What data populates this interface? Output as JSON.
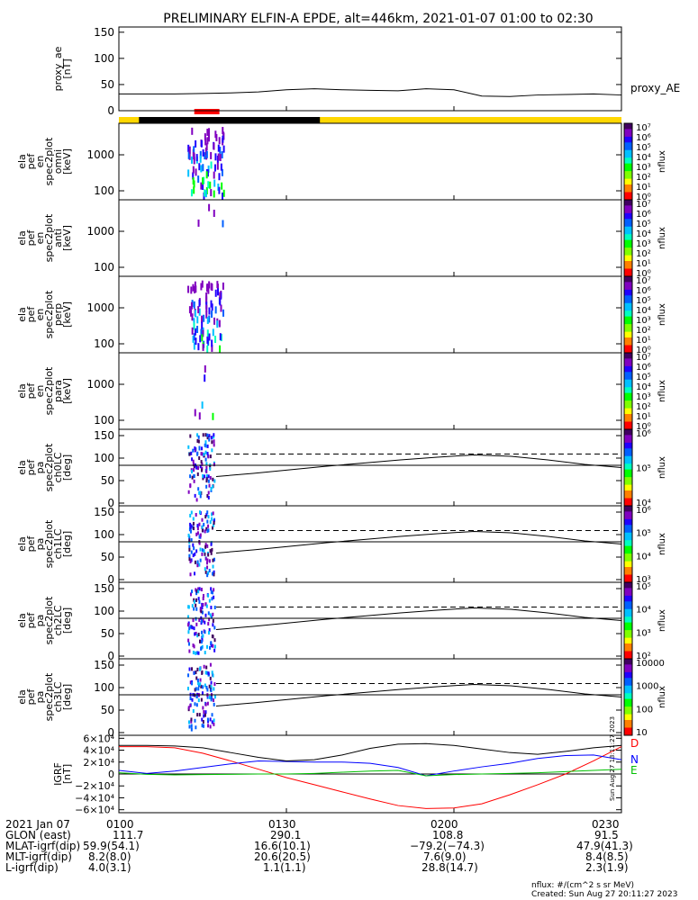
{
  "title": "PRELIMINARY ELFIN-A EPDE, alt=446km, 2021-01-07 01:00 to 02:30",
  "colors": {
    "axis": "#000000",
    "sci_bar": "#ff0000",
    "yellow_bar": "#ffd700",
    "black_bar": "#000000",
    "D": "#ff0000",
    "N": "#0000ff",
    "E": "#00c000"
  },
  "time_labels": [
    "0100",
    "0130",
    "0200",
    "0230"
  ],
  "state_bar": {
    "sci_zone": [
      0.15,
      0.2
    ],
    "black_zone": [
      0.04,
      0.4
    ]
  },
  "chart_data": [
    {
      "id": "proxy_ae",
      "type": "line",
      "ylabel": [
        "proxy_ae",
        "[nT]"
      ],
      "yticks": [
        "0",
        "50",
        "100",
        "150"
      ],
      "ylim": [
        0,
        160
      ],
      "legend": "proxy_AE",
      "x": [
        0,
        5,
        10,
        15,
        20,
        25,
        30,
        35,
        40,
        45,
        50,
        55,
        60,
        65,
        70,
        75,
        80,
        85,
        90
      ],
      "values": [
        32,
        32,
        32,
        33,
        34,
        36,
        40,
        42,
        40,
        39,
        38,
        42,
        40,
        28,
        27,
        30,
        31,
        32,
        30
      ]
    },
    {
      "id": "spec_omni",
      "type": "heatmap",
      "ylabel": [
        "ela",
        "pef",
        "en",
        "spec2plot",
        "omni",
        "[keV]"
      ],
      "yticks": [
        "100",
        "1000"
      ],
      "colorbar_label": "nflux",
      "colorbar_ticks": [
        "10⁰",
        "10¹",
        "10²",
        "10³",
        "10⁴",
        "10⁵",
        "10⁶",
        "10⁷"
      ]
    },
    {
      "id": "spec_anti",
      "type": "heatmap",
      "ylabel": [
        "ela",
        "pef",
        "en",
        "spec2plot",
        "anti",
        "[keV]"
      ],
      "yticks": [
        "100",
        "1000"
      ],
      "colorbar_label": "nflux",
      "colorbar_ticks": [
        "10⁰",
        "10¹",
        "10²",
        "10³",
        "10⁴",
        "10⁵",
        "10⁶",
        "10⁷"
      ]
    },
    {
      "id": "spec_perp",
      "type": "heatmap",
      "ylabel": [
        "ela",
        "pef",
        "en",
        "spec2plot",
        "perp",
        "[keV]"
      ],
      "yticks": [
        "100",
        "1000"
      ],
      "colorbar_label": "nflux",
      "colorbar_ticks": [
        "10⁰",
        "10¹",
        "10²",
        "10³",
        "10⁴",
        "10⁵",
        "10⁶",
        "10⁷"
      ]
    },
    {
      "id": "spec_para",
      "type": "heatmap",
      "ylabel": [
        "ela",
        "pef",
        "en",
        "spec2plot",
        "para",
        "[keV]"
      ],
      "yticks": [
        "100",
        "1000"
      ],
      "colorbar_label": "nflux",
      "colorbar_ticks": [
        "10⁰",
        "10¹",
        "10²",
        "10³",
        "10⁴",
        "10⁵",
        "10⁶",
        "10⁷"
      ]
    },
    {
      "id": "pa_ch0",
      "type": "heatmap",
      "ylabel": [
        "ela",
        "pef",
        "pa",
        "spec2plot",
        "ch0LC",
        "[deg]"
      ],
      "yticks": [
        "0",
        "50",
        "100",
        "150"
      ],
      "colorbar_label": "nflux",
      "colorbar_ticks": [
        "10⁴",
        "10⁵",
        "10⁶"
      ],
      "lc_solid": [
        65,
        72,
        80,
        88,
        95,
        102,
        108,
        113,
        110,
        102,
        92,
        85
      ],
      "lc_dashed": 115
    },
    {
      "id": "pa_ch1",
      "type": "heatmap",
      "ylabel": [
        "ela",
        "pef",
        "pa",
        "spec2plot",
        "ch1LC",
        "[deg]"
      ],
      "yticks": [
        "0",
        "50",
        "100",
        "150"
      ],
      "colorbar_label": "nflux",
      "colorbar_ticks": [
        "10³",
        "10⁴",
        "10⁵",
        "10⁶"
      ],
      "lc_solid": [
        65,
        72,
        80,
        88,
        95,
        102,
        108,
        113,
        110,
        102,
        92,
        85
      ],
      "lc_dashed": 115
    },
    {
      "id": "pa_ch2",
      "type": "heatmap",
      "ylabel": [
        "ela",
        "pef",
        "pa",
        "spec2plot",
        "ch2LC",
        "[deg]"
      ],
      "yticks": [
        "0",
        "50",
        "100",
        "150"
      ],
      "colorbar_label": "nflux",
      "colorbar_ticks": [
        "10²",
        "10³",
        "10⁴",
        "10⁵"
      ],
      "lc_solid": [
        65,
        72,
        80,
        88,
        95,
        102,
        108,
        113,
        110,
        102,
        92,
        85
      ],
      "lc_dashed": 115
    },
    {
      "id": "pa_ch3",
      "type": "heatmap",
      "ylabel": [
        "ela",
        "pef",
        "pa",
        "spec2plot",
        "ch3LC",
        "[deg]"
      ],
      "yticks": [
        "0",
        "50",
        "100",
        "150"
      ],
      "colorbar_label": "nflux",
      "colorbar_ticks": [
        "10",
        "100",
        "1000",
        "10000"
      ],
      "lc_solid": [
        65,
        72,
        80,
        88,
        95,
        102,
        108,
        113,
        110,
        102,
        92,
        85
      ],
      "lc_dashed": 115
    },
    {
      "id": "igrf",
      "type": "line",
      "ylabel": [
        "IGRF",
        "[nT]"
      ],
      "yticks": [
        "−6×10⁴",
        "−4×10⁴",
        "−2×10⁴",
        "0",
        "2×10⁴",
        "4×10⁴",
        "6×10⁴"
      ],
      "ylim": [
        -65000,
        65000
      ],
      "x": [
        0,
        5,
        10,
        15,
        20,
        25,
        30,
        35,
        40,
        45,
        50,
        55,
        60,
        65,
        70,
        75,
        80,
        85,
        90
      ],
      "series": [
        {
          "name": "D",
          "color": "#ff0000",
          "values": [
            46000,
            46000,
            44000,
            35000,
            22000,
            8000,
            -6000,
            -18000,
            -30000,
            -42000,
            -53000,
            -58000,
            -57000,
            -50000,
            -35000,
            -18000,
            0,
            22000,
            46000
          ]
        },
        {
          "name": "N",
          "color": "#0000ff",
          "values": [
            6000,
            1000,
            5000,
            11000,
            17000,
            22000,
            21000,
            20000,
            20000,
            18000,
            11000,
            -3000,
            5000,
            12000,
            18000,
            26000,
            31000,
            32000,
            24000
          ]
        },
        {
          "name": "E",
          "color": "#00c000",
          "values": [
            2000,
            -500,
            -1500,
            -1000,
            -500,
            0,
            0,
            1000,
            3000,
            5000,
            6000,
            -3000,
            -1000,
            0,
            1000,
            2000,
            4000,
            6000,
            8000
          ]
        },
        {
          "name": "",
          "color": "#000000",
          "values": [
            48000,
            48000,
            47000,
            44000,
            36000,
            28000,
            22000,
            24000,
            32000,
            43000,
            50000,
            51000,
            48000,
            42000,
            36000,
            33000,
            38000,
            44000,
            48000
          ]
        }
      ]
    }
  ],
  "footer": {
    "date_label": "2021 Jan 07",
    "rows": [
      {
        "label": "GLON (east)",
        "values": [
          "111.7",
          "290.1",
          "108.8",
          "91.5"
        ]
      },
      {
        "label": "MLAT-igrf(dip)",
        "values": [
          "59.9(54.1)",
          "16.6(10.1)",
          "−79.2(−74.3)",
          "47.9(41.3)"
        ]
      },
      {
        "label": "MLT-igrf(dip)",
        "values": [
          "8.2(8.0)",
          "20.6(20.5)",
          "7.6(9.0)",
          "8.4(8.5)"
        ]
      },
      {
        "label": "L-igrf(dip)",
        "values": [
          "4.0(3.1)",
          "1.1(1.1)",
          "28.8(14.7)",
          "2.3(1.9)"
        ]
      }
    ],
    "units": "nflux: #/(cm^2 s sr MeV)",
    "created": "Created: Sun Aug 27 20:11:27 2023",
    "side_stamp": "Sun Aug 27 13:11:27 2023"
  }
}
